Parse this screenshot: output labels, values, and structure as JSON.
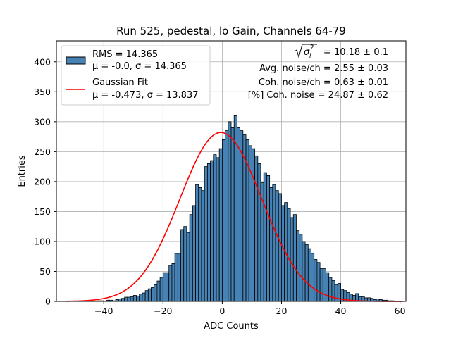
{
  "chart_data": {
    "type": "bar",
    "title": "Run 525, pedestal, lo Gain, Channels 64-79",
    "xlabel": "ADC Counts",
    "ylabel": "Entries",
    "xlim": [
      -56,
      62
    ],
    "ylim": [
      0,
      435
    ],
    "xticks": [
      -40,
      -20,
      0,
      20,
      40,
      60
    ],
    "xtick_labels": [
      "−40",
      "−20",
      "0",
      "20",
      "40",
      "60"
    ],
    "yticks": [
      0,
      50,
      100,
      150,
      200,
      250,
      300,
      350,
      400
    ],
    "ytick_labels": [
      "0",
      "50",
      "100",
      "150",
      "200",
      "250",
      "300",
      "350",
      "400"
    ],
    "grid": true,
    "bin_start": -53,
    "bin_width": 1,
    "values": [
      0,
      0,
      0,
      0,
      0,
      0,
      0,
      0,
      0,
      0,
      0,
      1,
      1,
      0,
      2,
      2,
      1,
      3,
      4,
      5,
      7,
      7,
      8,
      10,
      9,
      12,
      14,
      18,
      21,
      23,
      28,
      34,
      40,
      48,
      48,
      60,
      63,
      80,
      80,
      120,
      125,
      115,
      145,
      160,
      195,
      190,
      185,
      225,
      230,
      235,
      245,
      240,
      255,
      270,
      285,
      300,
      290,
      310,
      290,
      285,
      278,
      270,
      260,
      255,
      243,
      230,
      198,
      215,
      210,
      190,
      195,
      185,
      180,
      160,
      165,
      155,
      140,
      145,
      118,
      112,
      100,
      95,
      88,
      80,
      70,
      65,
      55,
      55,
      48,
      40,
      35,
      28,
      30,
      20,
      18,
      15,
      12,
      10,
      13,
      8,
      8,
      6,
      6,
      5,
      3,
      4,
      3,
      2,
      2,
      1,
      1
    ],
    "series": [
      {
        "name": "hist",
        "legend": [
          "RMS = 14.365",
          "μ = -0.0, σ = 14.365"
        ],
        "color": "#4682b4"
      },
      {
        "name": "fit",
        "legend": [
          "Gaussian Fit",
          "μ = -0.473, σ = 13.837"
        ],
        "color": "#ff0000",
        "mu": -0.473,
        "sigma": 13.837,
        "amplitude": 282
      }
    ],
    "annotations": {
      "line1_value": " = 10.18 ± 0.1",
      "line1_sym": "σ",
      "line1_sub": "i",
      "line1_sup": "2",
      "line2": "Avg. noise/ch = 2.55 ± 0.03",
      "line3": "Coh. noise/ch = 0.63 ± 0.01",
      "line4": "[%] Coh. noise = 24.87 ± 0.62"
    }
  }
}
